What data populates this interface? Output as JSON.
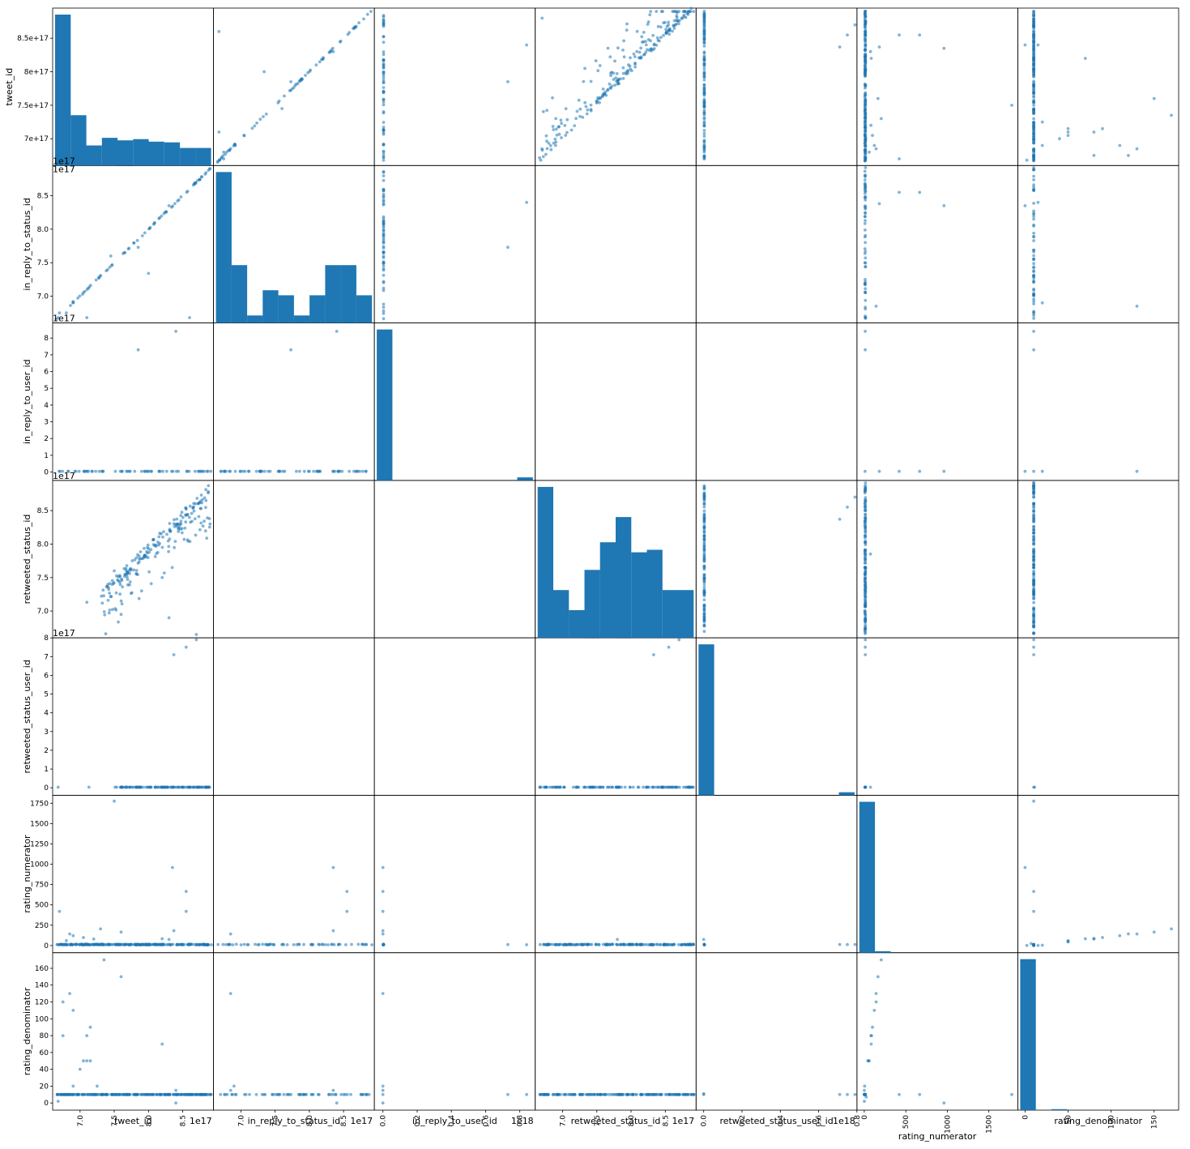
{
  "chart_data": {
    "type": "scatter",
    "variables": [
      {
        "label": "tweet_id",
        "scale_label": "1e17",
        "range": [
          6.6,
          8.95
        ],
        "ticks": [
          7.0,
          7.5,
          8.0,
          8.5
        ],
        "xtick_labels": [
          "7.0",
          "7.5",
          "8.0",
          "8.5"
        ],
        "ytick_labels": [
          "7e+17",
          "7.5e+17",
          "8e+17",
          "8.5e+17"
        ]
      },
      {
        "label": "in_reply_to_status_id",
        "scale_label": "1e17",
        "range": [
          6.6,
          8.95
        ],
        "ticks": [
          7.0,
          7.5,
          8.0,
          8.5
        ],
        "xtick_labels": [
          "7.0",
          "7.5",
          "8.0",
          "8.5"
        ],
        "ytick_labels": [
          "7.0",
          "7.5",
          "8.0",
          "8.5"
        ]
      },
      {
        "label": "in_reply_to_user_id",
        "scale_label": "1e17",
        "xscale_label": "1e18",
        "range": [
          -0.05,
          0.89
        ],
        "ticks": [
          0.0,
          0.2,
          0.4,
          0.6,
          0.8
        ],
        "yticks": [
          0,
          0.1,
          0.2,
          0.3,
          0.4,
          0.5,
          0.6,
          0.7,
          0.8
        ],
        "xtick_labels": [
          "0.0",
          "0.2",
          "0.4",
          "0.6",
          "0.8"
        ],
        "ytick_labels": [
          "0",
          "1",
          "2",
          "3",
          "4",
          "5",
          "6",
          "7",
          "8"
        ]
      },
      {
        "label": "retweeted_status_id",
        "scale_label": "1e17",
        "range": [
          6.6,
          8.95
        ],
        "ticks": [
          7.0,
          7.5,
          8.0,
          8.5
        ],
        "xtick_labels": [
          "7.0",
          "7.5",
          "8.0",
          "8.5"
        ],
        "ytick_labels": [
          "7.0",
          "7.5",
          "8.0",
          "8.5"
        ]
      },
      {
        "label": "retweeted_status_user_id",
        "scale_label": "1e17",
        "xscale_label": "1e18",
        "range": [
          -0.04,
          0.8
        ],
        "ticks": [
          0.0,
          0.2,
          0.4,
          0.6,
          0.8
        ],
        "yticks": [
          0,
          0.1,
          0.2,
          0.3,
          0.4,
          0.5,
          0.6,
          0.7,
          0.8
        ],
        "xtick_labels": [
          "0.0",
          "0.2",
          "0.4",
          "0.6",
          "0.8"
        ],
        "ytick_labels": [
          "0",
          "1",
          "2",
          "3",
          "4",
          "5",
          "6",
          "7",
          "8"
        ]
      },
      {
        "label": "rating_numerator",
        "scale_label": "",
        "range": [
          -88,
          1848
        ],
        "ticks": [
          0,
          500,
          1000,
          1500
        ],
        "yticks": [
          0,
          250,
          500,
          750,
          1000,
          1250,
          1500,
          1750
        ],
        "xtick_labels": [
          "0",
          "500",
          "1000",
          "1500"
        ],
        "ytick_labels": [
          "0",
          "250",
          "500",
          "750",
          "1000",
          "1250",
          "1500",
          "1750"
        ]
      },
      {
        "label": "rating_denominator",
        "scale_label": "",
        "range": [
          -8.5,
          178.5
        ],
        "ticks": [
          0,
          50,
          100,
          150
        ],
        "yticks": [
          0,
          20,
          40,
          60,
          80,
          100,
          120,
          140,
          160
        ],
        "xtick_labels": [
          "0",
          "50",
          "100",
          "150"
        ],
        "ytick_labels": [
          "0",
          "20",
          "40",
          "60",
          "80",
          "100",
          "120",
          "140",
          "160"
        ]
      }
    ],
    "histograms": [
      [
        60,
        20,
        8,
        11,
        10,
        10.5,
        9.5,
        9.2,
        7,
        7
      ],
      [
        60,
        23,
        3,
        13,
        11,
        3,
        11,
        23,
        23,
        11
      ],
      [
        60,
        0,
        0,
        0,
        0,
        0,
        0,
        0,
        0,
        1.2
      ],
      [
        60,
        19,
        11,
        27,
        38,
        48,
        34,
        35,
        19,
        19
      ],
      [
        60,
        0,
        0,
        0,
        0,
        0,
        0,
        0,
        0,
        1.2
      ],
      [
        60,
        0.6,
        0,
        0,
        0,
        0,
        0,
        0,
        0,
        0
      ],
      [
        60,
        0,
        0.4,
        0,
        0,
        0,
        0,
        0,
        0,
        0
      ]
    ],
    "notable_points": {
      "reply_status_vs_tweet": [
        [
          6.65,
          6.66
        ],
        [
          6.9,
          6.92
        ],
        [
          7.45,
          7.6
        ],
        [
          7.85,
          7.73
        ],
        [
          8.0,
          7.34
        ],
        [
          8.3,
          8.35
        ],
        [
          8.6,
          6.68
        ],
        [
          6.7,
          6.75
        ],
        [
          6.8,
          6.75
        ],
        [
          7.1,
          6.68
        ],
        [
          8.9,
          8.9
        ]
      ],
      "retweet_vs_tweet": [
        [
          7.1,
          7.13
        ],
        [
          8.9,
          8.3
        ],
        [
          8.7,
          6.65
        ],
        [
          7.5,
          7.6
        ],
        [
          7.9,
          7.3
        ],
        [
          8.2,
          7.5
        ],
        [
          8.3,
          6.9
        ],
        [
          7.6,
          6.95
        ]
      ],
      "numerator_vs_tweet": [
        [
          7.5,
          1776
        ],
        [
          8.35,
          960
        ],
        [
          8.55,
          666
        ],
        [
          8.55,
          420
        ],
        [
          6.7,
          420
        ],
        [
          7.3,
          204
        ],
        [
          8.37,
          182
        ],
        [
          7.6,
          165
        ],
        [
          6.85,
          143
        ],
        [
          6.9,
          121
        ],
        [
          7.05,
          99
        ],
        [
          7.2,
          80
        ],
        [
          8.2,
          84
        ],
        [
          8.3,
          75
        ],
        [
          6.8,
          60
        ]
      ],
      "denominator_vs_tweet": [
        [
          6.75,
          120
        ],
        [
          6.85,
          130
        ],
        [
          6.9,
          110
        ],
        [
          7.35,
          170
        ],
        [
          7.6,
          150
        ],
        [
          7.1,
          80
        ],
        [
          7.15,
          90
        ],
        [
          6.75,
          80
        ],
        [
          7.05,
          50
        ],
        [
          7.1,
          50
        ],
        [
          7.15,
          50
        ],
        [
          7.0,
          40
        ],
        [
          8.2,
          70
        ],
        [
          8.4,
          0
        ],
        [
          7.25,
          20
        ],
        [
          6.9,
          20
        ],
        [
          8.4,
          15
        ],
        [
          6.68,
          2
        ]
      ],
      "denominator_vs_numerator": [
        [
          960,
          0
        ],
        [
          204,
          170
        ],
        [
          165,
          150
        ],
        [
          143,
          130
        ],
        [
          144,
          120
        ],
        [
          121,
          110
        ],
        [
          99,
          90
        ],
        [
          88,
          80
        ],
        [
          80,
          80
        ],
        [
          60,
          50
        ],
        [
          50,
          50
        ],
        [
          45,
          50
        ],
        [
          4,
          20
        ],
        [
          1,
          2
        ],
        [
          420,
          10
        ],
        [
          666,
          10
        ],
        [
          1776,
          10
        ],
        [
          84,
          70
        ],
        [
          24,
          7
        ],
        [
          1,
          15
        ]
      ]
    }
  }
}
